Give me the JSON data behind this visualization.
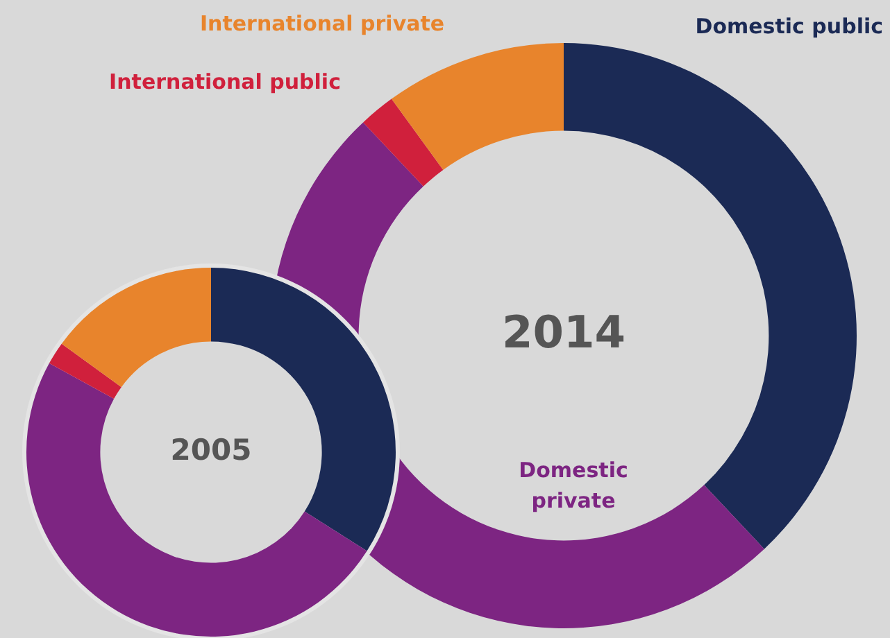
{
  "chart_data": [
    {
      "type": "donut",
      "title": "2014",
      "categories": [
        "Domestic public",
        "Domestic private",
        "International public",
        "International private"
      ],
      "values": [
        38,
        50,
        2,
        10
      ],
      "colors": [
        "#1b2a55",
        "#7d2582",
        "#d0203c",
        "#e8842c"
      ],
      "legend": false
    },
    {
      "type": "donut",
      "title": "2005",
      "categories": [
        null,
        null,
        null,
        null
      ],
      "values": [
        34,
        49,
        2,
        15
      ],
      "colors": [
        "#1b2a55",
        "#7d2582",
        "#d0203c",
        "#e8842c"
      ],
      "legend": false
    }
  ]
}
